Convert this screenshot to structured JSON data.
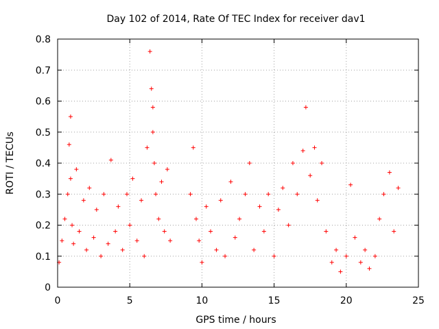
{
  "chart_data": {
    "type": "scatter",
    "title": "Day 102 of 2014, Rate Of TEC Index for receiver dav1",
    "xlabel": "GPS time / hours",
    "ylabel": "ROTI / TECUs",
    "xlim": [
      0,
      25
    ],
    "ylim": [
      0,
      0.8
    ],
    "x_ticks": [
      0,
      5,
      10,
      15,
      20,
      25
    ],
    "x_tick_labels": [
      "0",
      "5",
      "10",
      "15",
      "20",
      "25"
    ],
    "y_ticks": [
      0,
      0.1,
      0.2,
      0.3,
      0.4,
      0.5,
      0.6,
      0.7,
      0.8
    ],
    "y_tick_labels": [
      "0",
      "0.1",
      "0.2",
      "0.3",
      "0.4",
      "0.5",
      "0.6",
      "0.7",
      "0.8"
    ],
    "grid": true,
    "marker": "+",
    "color": "#ff0000",
    "series": [
      {
        "name": "ROTI",
        "x": [
          0.1,
          0.3,
          0.5,
          0.7,
          0.8,
          0.9,
          0.9,
          1.0,
          1.1,
          1.3,
          1.5,
          1.8,
          2.0,
          2.2,
          2.5,
          2.7,
          3.0,
          3.2,
          3.5,
          3.7,
          4.0,
          4.2,
          4.5,
          4.8,
          5.0,
          5.2,
          5.5,
          5.8,
          6.0,
          6.2,
          6.4,
          6.5,
          6.6,
          6.6,
          6.7,
          6.8,
          7.0,
          7.2,
          7.4,
          7.6,
          7.8,
          9.2,
          9.4,
          9.6,
          9.8,
          10.0,
          10.3,
          10.6,
          11.0,
          11.3,
          11.6,
          12.0,
          12.3,
          12.6,
          13.0,
          13.3,
          13.6,
          14.0,
          14.3,
          14.6,
          15.0,
          15.3,
          15.6,
          16.0,
          16.3,
          16.6,
          17.0,
          17.2,
          17.5,
          17.8,
          18.0,
          18.3,
          18.6,
          19.0,
          19.3,
          19.6,
          20.0,
          20.3,
          20.6,
          21.0,
          21.3,
          21.6,
          22.0,
          22.3,
          22.6,
          23.0,
          23.3,
          23.6
        ],
        "y": [
          0.08,
          0.15,
          0.22,
          0.3,
          0.46,
          0.55,
          0.35,
          0.2,
          0.14,
          0.38,
          0.18,
          0.28,
          0.12,
          0.32,
          0.16,
          0.25,
          0.1,
          0.3,
          0.14,
          0.41,
          0.18,
          0.26,
          0.12,
          0.3,
          0.2,
          0.35,
          0.15,
          0.28,
          0.1,
          0.45,
          0.76,
          0.64,
          0.58,
          0.5,
          0.4,
          0.3,
          0.22,
          0.34,
          0.18,
          0.38,
          0.15,
          0.3,
          0.45,
          0.22,
          0.15,
          0.08,
          0.26,
          0.18,
          0.12,
          0.28,
          0.1,
          0.34,
          0.16,
          0.22,
          0.3,
          0.4,
          0.12,
          0.26,
          0.18,
          0.3,
          0.1,
          0.25,
          0.32,
          0.2,
          0.4,
          0.3,
          0.44,
          0.58,
          0.36,
          0.45,
          0.28,
          0.4,
          0.18,
          0.08,
          0.12,
          0.05,
          0.1,
          0.33,
          0.16,
          0.08,
          0.12,
          0.06,
          0.1,
          0.22,
          0.3,
          0.37,
          0.18,
          0.32
        ]
      }
    ]
  }
}
